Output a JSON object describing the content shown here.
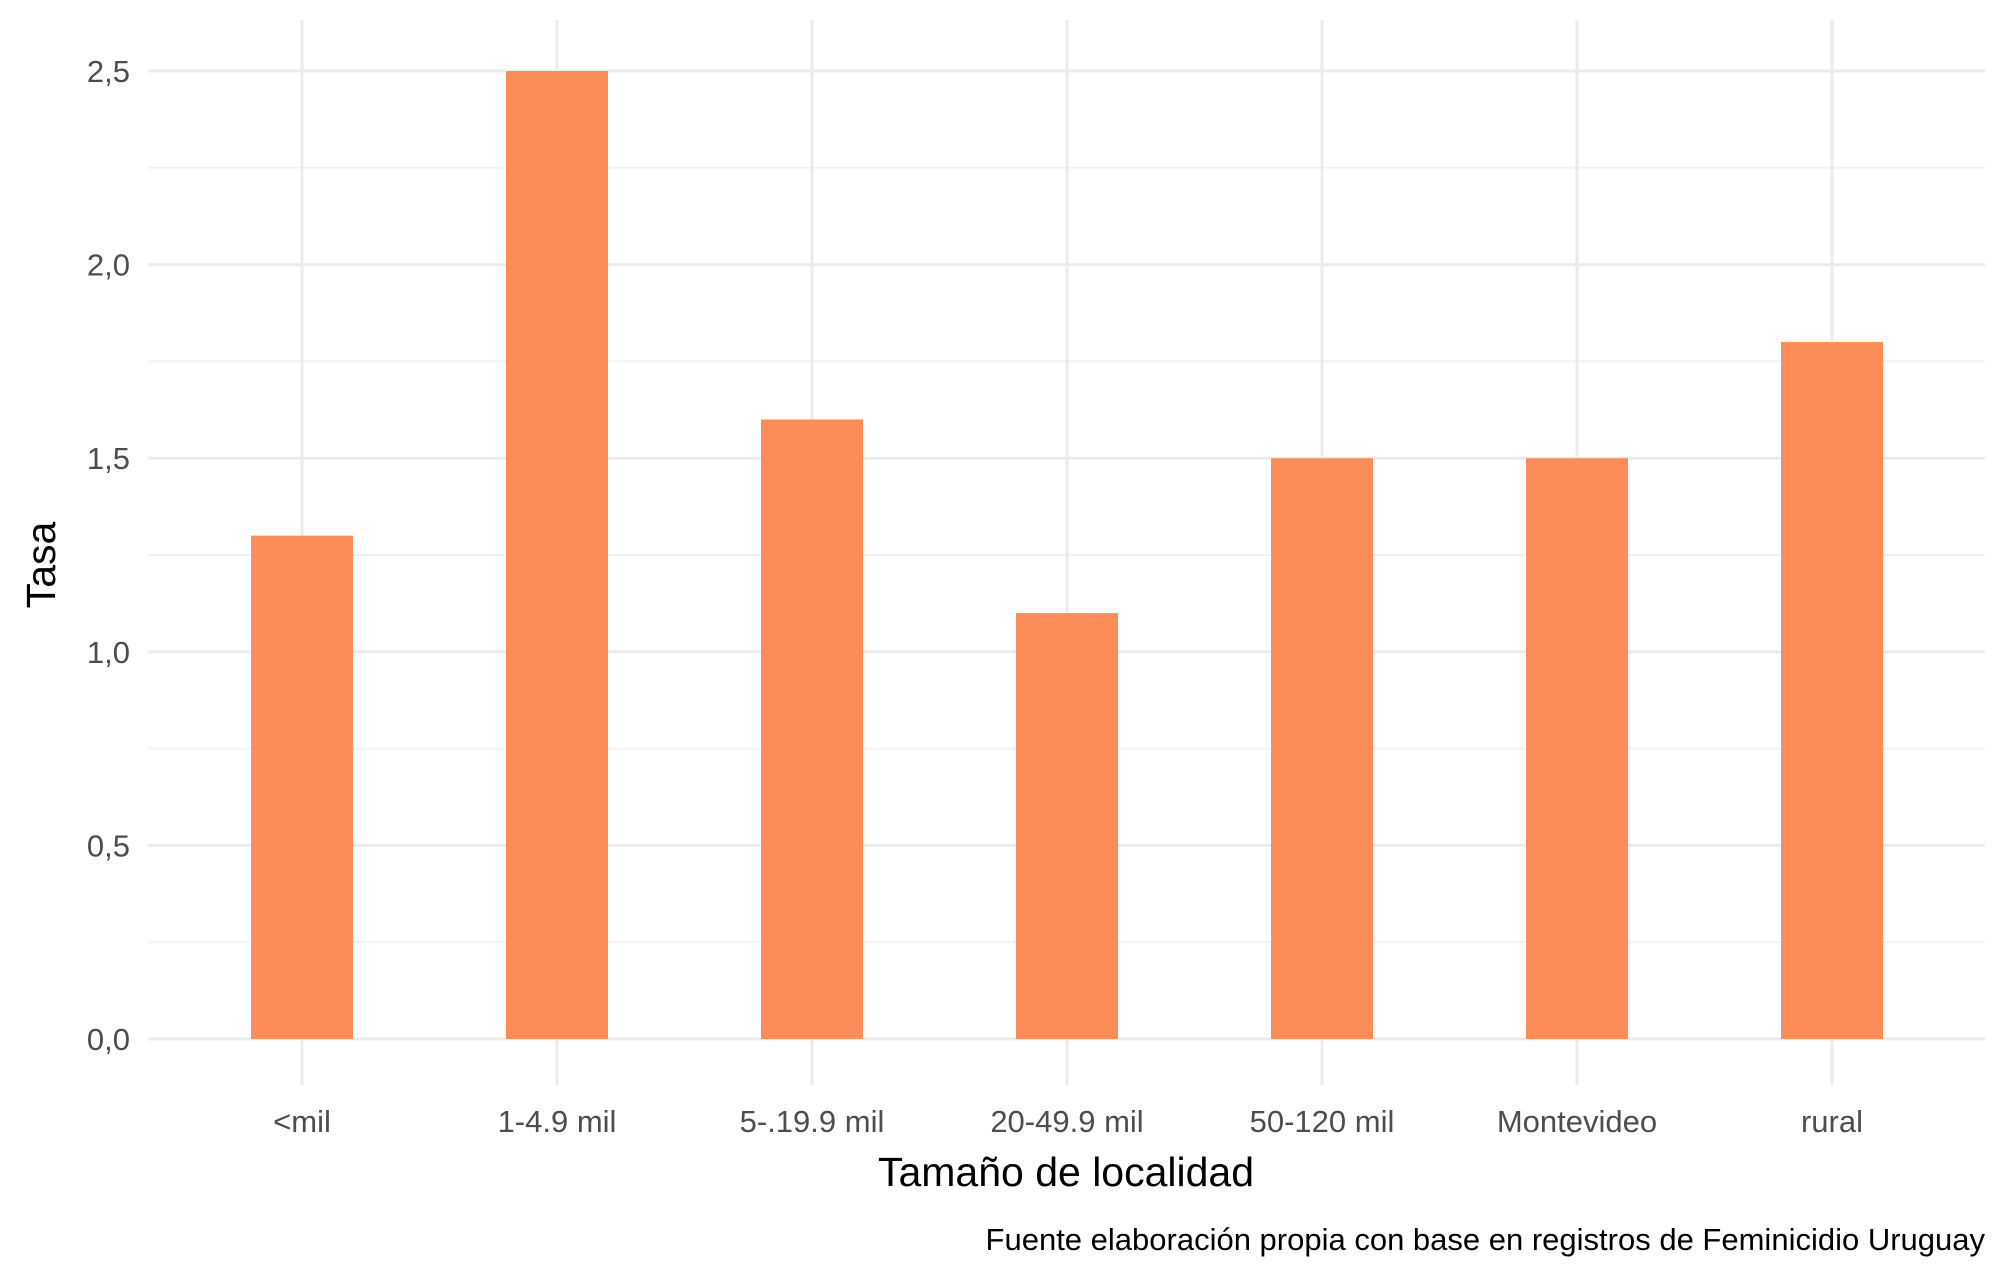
{
  "chart_data": {
    "type": "bar",
    "categories": [
      "<mil",
      "1-4.9 mil",
      "5-.19.9 mil",
      "20-49.9 mil",
      "50-120 mil",
      "Montevideo",
      "rural"
    ],
    "values": [
      1.3,
      2.5,
      1.6,
      1.1,
      1.5,
      1.5,
      1.8
    ],
    "title": "",
    "xlabel": "Tamaño de localidad",
    "ylabel": "Tasa",
    "ylim": [
      0,
      2.5
    ],
    "y_ticks": [
      "0,0",
      "0,5",
      "1,0",
      "1,5",
      "2,0",
      "2,5"
    ],
    "y_tick_values": [
      0,
      0.5,
      1.0,
      1.5,
      2.0,
      2.5
    ],
    "caption": "Fuente elaboración propia con base en registros de Feminicidio Uruguay",
    "grid": true,
    "legend": "none",
    "colors": {
      "bar": "#FC8D59",
      "grid_major": "#EBEBEB",
      "grid_minor": "#F2F2F2",
      "tick_text": "#4D4D4D"
    }
  }
}
